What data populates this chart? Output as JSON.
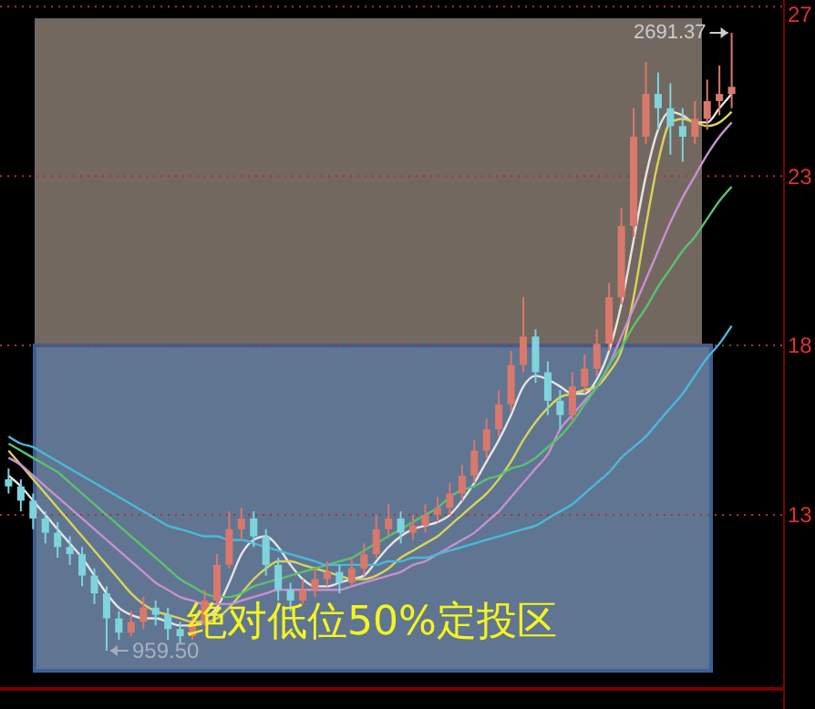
{
  "chart_data": {
    "type": "candlestick",
    "categories": [
      null,
      null,
      null,
      null,
      null,
      null,
      null,
      null,
      null,
      null,
      null,
      null,
      null,
      null,
      null,
      null,
      null,
      null,
      null,
      null,
      null,
      null,
      null,
      null,
      null,
      null,
      null,
      null,
      null,
      null,
      null,
      null,
      null,
      null,
      null,
      null,
      null,
      null,
      null,
      null,
      null,
      null,
      null,
      null,
      null,
      null,
      null,
      null,
      null,
      null,
      null,
      null,
      null,
      null,
      null,
      null,
      null,
      null,
      null,
      null
    ],
    "ohlc": [
      [
        1440,
        1470,
        1400,
        1420
      ],
      [
        1420,
        1440,
        1350,
        1380
      ],
      [
        1380,
        1400,
        1300,
        1330
      ],
      [
        1330,
        1350,
        1260,
        1290
      ],
      [
        1290,
        1320,
        1220,
        1250
      ],
      [
        1250,
        1280,
        1200,
        1230
      ],
      [
        1230,
        1250,
        1140,
        1170
      ],
      [
        1170,
        1190,
        1090,
        1120
      ],
      [
        1120,
        1140,
        959.5,
        1050
      ],
      [
        1050,
        1070,
        990,
        1010
      ],
      [
        1010,
        1070,
        1000,
        1040
      ],
      [
        1040,
        1110,
        1020,
        1080
      ],
      [
        1080,
        1100,
        1030,
        1060
      ],
      [
        1060,
        1080,
        990,
        1020
      ],
      [
        1020,
        1040,
        980,
        1000
      ],
      [
        1000,
        1060,
        990,
        1040
      ],
      [
        1040,
        1130,
        1030,
        1100
      ],
      [
        1100,
        1230,
        1090,
        1200
      ],
      [
        1200,
        1350,
        1190,
        1300
      ],
      [
        1300,
        1360,
        1270,
        1330
      ],
      [
        1330,
        1350,
        1250,
        1280
      ],
      [
        1280,
        1300,
        1170,
        1200
      ],
      [
        1200,
        1220,
        1100,
        1130
      ],
      [
        1130,
        1150,
        1070,
        1100
      ],
      [
        1100,
        1160,
        1090,
        1130
      ],
      [
        1130,
        1190,
        1110,
        1160
      ],
      [
        1160,
        1210,
        1140,
        1180
      ],
      [
        1180,
        1200,
        1120,
        1150
      ],
      [
        1150,
        1220,
        1140,
        1190
      ],
      [
        1190,
        1260,
        1170,
        1230
      ],
      [
        1230,
        1340,
        1220,
        1300
      ],
      [
        1300,
        1370,
        1280,
        1330
      ],
      [
        1330,
        1350,
        1260,
        1290
      ],
      [
        1290,
        1340,
        1270,
        1310
      ],
      [
        1310,
        1370,
        1290,
        1340
      ],
      [
        1340,
        1390,
        1320,
        1360
      ],
      [
        1360,
        1430,
        1340,
        1400
      ],
      [
        1400,
        1480,
        1380,
        1450
      ],
      [
        1450,
        1550,
        1430,
        1520
      ],
      [
        1520,
        1610,
        1500,
        1580
      ],
      [
        1580,
        1690,
        1560,
        1650
      ],
      [
        1650,
        1800,
        1630,
        1760
      ],
      [
        1760,
        1950,
        1740,
        1840
      ],
      [
        1840,
        1860,
        1710,
        1740
      ],
      [
        1740,
        1770,
        1620,
        1660
      ],
      [
        1660,
        1690,
        1580,
        1620
      ],
      [
        1620,
        1740,
        1600,
        1700
      ],
      [
        1700,
        1790,
        1680,
        1750
      ],
      [
        1750,
        1860,
        1730,
        1820
      ],
      [
        1820,
        1990,
        1800,
        1950
      ],
      [
        1950,
        2200,
        1930,
        2150
      ],
      [
        2150,
        2480,
        2120,
        2400
      ],
      [
        2400,
        2610,
        2380,
        2520
      ],
      [
        2520,
        2580,
        2420,
        2480
      ],
      [
        2480,
        2550,
        2350,
        2430
      ],
      [
        2430,
        2480,
        2330,
        2400
      ],
      [
        2400,
        2500,
        2380,
        2450
      ],
      [
        2450,
        2560,
        2420,
        2500
      ],
      [
        2500,
        2600,
        2460,
        2520
      ],
      [
        2520,
        2691.37,
        2480,
        2540
      ]
    ],
    "colors": [
      "#7fd3dc",
      "#7fd3dc",
      "#7fd3dc",
      "#7fd3dc",
      "#7fd3dc",
      "#7fd3dc",
      "#7fd3dc",
      "#7fd3dc",
      "#7fd3dc",
      "#7fd3dc",
      "#d9786c",
      "#d9786c",
      "#7fd3dc",
      "#7fd3dc",
      "#7fd3dc",
      "#d9786c",
      "#d9786c",
      "#d9786c",
      "#d9786c",
      "#d9786c",
      "#7fd3dc",
      "#7fd3dc",
      "#7fd3dc",
      "#7fd3dc",
      "#d9786c",
      "#d9786c",
      "#d9786c",
      "#7fd3dc",
      "#d9786c",
      "#d9786c",
      "#d9786c",
      "#d9786c",
      "#7fd3dc",
      "#d9786c",
      "#d9786c",
      "#d9786c",
      "#d9786c",
      "#d9786c",
      "#d9786c",
      "#d9786c",
      "#d9786c",
      "#d9786c",
      "#d9786c",
      "#7fd3dc",
      "#7fd3dc",
      "#7fd3dc",
      "#d9786c",
      "#d9786c",
      "#d9786c",
      "#d9786c",
      "#d9786c",
      "#d9786c",
      "#d9786c",
      "#7fd3dc",
      "#7fd3dc",
      "#7fd3dc",
      "#d9786c",
      "#d9786c",
      "#d9786c",
      "#d9786c"
    ],
    "series": [
      {
        "type": "line",
        "color": "#e6e6e6",
        "values": [
          1450,
          1420,
          1380,
          1340,
          1300,
          1260,
          1220,
          1170,
          1120,
          1080,
          1060,
          1050,
          1050,
          1040,
          1030,
          1030,
          1050,
          1080,
          1150,
          1230,
          1270,
          1280,
          1250,
          1200,
          1160,
          1140,
          1140,
          1150,
          1160,
          1170,
          1210,
          1250,
          1280,
          1300,
          1310,
          1320,
          1340,
          1380,
          1430,
          1490,
          1550,
          1620,
          1700,
          1730,
          1720,
          1700,
          1680,
          1680,
          1720,
          1800,
          1930,
          2110,
          2290,
          2420,
          2470,
          2460,
          2440,
          2440,
          2480,
          2520
        ]
      },
      {
        "type": "line",
        "color": "#d8d45a",
        "values": [
          1520,
          1480,
          1440,
          1400,
          1360,
          1320,
          1280,
          1240,
          1200,
          1160,
          1120,
          1090,
          1070,
          1060,
          1050,
          1040,
          1040,
          1050,
          1080,
          1120,
          1160,
          1190,
          1210,
          1210,
          1200,
          1190,
          1180,
          1170,
          1160,
          1160,
          1170,
          1190,
          1220,
          1240,
          1260,
          1280,
          1310,
          1340,
          1370,
          1400,
          1440,
          1490,
          1550,
          1600,
          1640,
          1670,
          1680,
          1690,
          1700,
          1740,
          1800,
          1950,
          2150,
          2330,
          2440,
          2450,
          2440,
          2430,
          2440,
          2470
        ]
      },
      {
        "type": "line",
        "color": "#c890d0",
        "values": [
          1500,
          1480,
          1450,
          1420,
          1390,
          1360,
          1330,
          1300,
          1270,
          1240,
          1210,
          1180,
          1150,
          1130,
          1110,
          1100,
          1090,
          1090,
          1090,
          1100,
          1110,
          1120,
          1130,
          1130,
          1130,
          1130,
          1130,
          1130,
          1140,
          1150,
          1160,
          1170,
          1180,
          1200,
          1210,
          1230,
          1250,
          1270,
          1290,
          1320,
          1350,
          1390,
          1430,
          1470,
          1510,
          1580,
          1620,
          1660,
          1700,
          1760,
          1840,
          1920,
          2000,
          2080,
          2160,
          2230,
          2290,
          2350,
          2400,
          2440
        ]
      },
      {
        "type": "line",
        "color": "#5cc070",
        "values": [
          1540,
          1520,
          1500,
          1480,
          1460,
          1430,
          1400,
          1370,
          1340,
          1310,
          1280,
          1250,
          1220,
          1190,
          1160,
          1140,
          1120,
          1110,
          1110,
          1120,
          1140,
          1150,
          1160,
          1170,
          1180,
          1190,
          1200,
          1210,
          1220,
          1240,
          1260,
          1280,
          1300,
          1320,
          1340,
          1360,
          1390,
          1410,
          1420,
          1440,
          1450,
          1470,
          1480,
          1500,
          1530,
          1560,
          1600,
          1650,
          1700,
          1760,
          1810,
          1870,
          1920,
          1980,
          2030,
          2080,
          2120,
          2170,
          2220,
          2260
        ]
      },
      {
        "type": "line",
        "color": "#4cb8d8",
        "values": [
          1560,
          1540,
          1530,
          1510,
          1490,
          1470,
          1450,
          1430,
          1410,
          1390,
          1370,
          1350,
          1330,
          1310,
          1300,
          1290,
          1280,
          1280,
          1270,
          1270,
          1260,
          1250,
          1240,
          1230,
          1220,
          1210,
          1200,
          1200,
          1200,
          1200,
          1200,
          1210,
          1210,
          1220,
          1220,
          1230,
          1240,
          1250,
          1260,
          1270,
          1280,
          1290,
          1300,
          1310,
          1330,
          1350,
          1370,
          1400,
          1430,
          1460,
          1500,
          1530,
          1560,
          1600,
          1640,
          1680,
          1730,
          1780,
          1820,
          1870
        ]
      }
    ],
    "ref_lines": [
      {
        "axis": "y",
        "value": 2765,
        "color": "#b03030",
        "line_style": "dotted"
      },
      {
        "axis": "y",
        "value": 2290,
        "color": "#b03030",
        "line_style": "dotted"
      },
      {
        "axis": "y",
        "value": 1815,
        "color": "#b03030",
        "line_style": "dotted"
      },
      {
        "axis": "y",
        "value": 1340,
        "color": "#b03030",
        "line_style": "dotted"
      }
    ],
    "bands": [
      {
        "axis": "y",
        "from": 1815,
        "to": 2732,
        "color": "#726860"
      },
      {
        "axis": "y",
        "from": 903,
        "to": 1815,
        "label": "绝对低位50%定投区",
        "color": "#5f7592"
      }
    ],
    "annotations": [
      "2691.37",
      "959.50",
      "27",
      "23",
      "18",
      "13"
    ]
  }
}
